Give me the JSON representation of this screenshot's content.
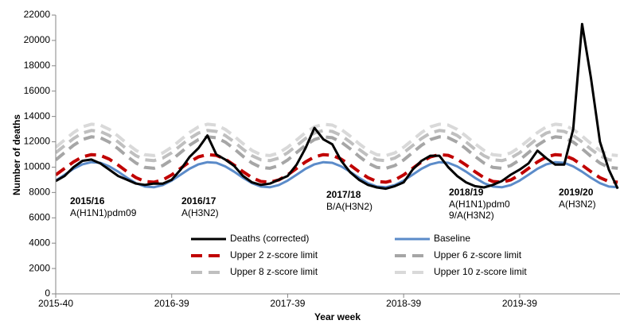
{
  "chart_data": {
    "type": "line",
    "y_label": "Number of deaths",
    "x_label": "Year week",
    "x": [
      0,
      4,
      8,
      12,
      16,
      20,
      24,
      28,
      32,
      36,
      40,
      44,
      48,
      52,
      56,
      60,
      64,
      68,
      72,
      76,
      80,
      84,
      88,
      92,
      96,
      100,
      104,
      108,
      112,
      116,
      120,
      124,
      128,
      132,
      136,
      140,
      144,
      148,
      152,
      156,
      160,
      164,
      168,
      172,
      176,
      180,
      184,
      188,
      192,
      196,
      200,
      204,
      208,
      212,
      216,
      220,
      224,
      228,
      232,
      236,
      240,
      244,
      248,
      252
    ],
    "xlim": [
      0,
      253
    ],
    "xticks": [
      {
        "value": 0,
        "label": "2015-40"
      },
      {
        "value": 52,
        "label": "2016-39"
      },
      {
        "value": 104,
        "label": "2017-39"
      },
      {
        "value": 156,
        "label": "2018-39"
      },
      {
        "value": 208,
        "label": "2019-39"
      }
    ],
    "ylim": [
      0,
      22000
    ],
    "yticks": [
      0,
      2000,
      4000,
      6000,
      8000,
      10000,
      12000,
      14000,
      16000,
      18000,
      20000,
      22000
    ],
    "series": [
      {
        "name": "Deaths (corrected)",
        "color": "#000000",
        "dashed": false,
        "values": [
          8900,
          9300,
          10000,
          10500,
          10600,
          10300,
          9800,
          9300,
          9000,
          8700,
          8600,
          8700,
          8700,
          9000,
          9800,
          10800,
          11500,
          12500,
          11000,
          10600,
          10100,
          9300,
          8800,
          8600,
          8700,
          9000,
          9300,
          10200,
          11500,
          13100,
          12200,
          11800,
          10500,
          9600,
          9000,
          8600,
          8400,
          8300,
          8500,
          8800,
          9800,
          10500,
          10900,
          10900,
          10000,
          9300,
          8800,
          8500,
          8400,
          8600,
          8900,
          9400,
          9800,
          10300,
          11300,
          10700,
          10200,
          10200,
          13000,
          21300,
          17000,
          12000,
          9800,
          8300
        ]
      },
      {
        "name": "Baseline",
        "color": "#5b8bc9",
        "dashed": false,
        "values": [
          8940,
          9400,
          9870,
          10220,
          10390,
          10340,
          10060,
          9640,
          9160,
          8740,
          8470,
          8410,
          8580,
          8940,
          9400,
          9870,
          10220,
          10390,
          10340,
          10060,
          9640,
          9160,
          8740,
          8470,
          8410,
          8580,
          8940,
          9400,
          9870,
          10220,
          10390,
          10340,
          10060,
          9640,
          9160,
          8740,
          8470,
          8410,
          8580,
          8940,
          9400,
          9870,
          10220,
          10390,
          10340,
          10060,
          9640,
          9160,
          8740,
          8470,
          8410,
          8580,
          8940,
          9400,
          9870,
          10220,
          10390,
          10340,
          10060,
          9640,
          9160,
          8740,
          8470,
          8410
        ]
      },
      {
        "name": "Upper 2 z-score limit",
        "color": "#c00000",
        "dashed": true,
        "values": [
          9390,
          9900,
          10410,
          10810,
          10990,
          10930,
          10630,
          10160,
          9640,
          9170,
          8870,
          8810,
          8990,
          9390,
          9900,
          10410,
          10810,
          10990,
          10930,
          10630,
          10160,
          9640,
          9170,
          8870,
          8810,
          8990,
          9390,
          9900,
          10410,
          10810,
          10990,
          10930,
          10630,
          10160,
          9640,
          9170,
          8870,
          8810,
          8990,
          9390,
          9900,
          10410,
          10810,
          10990,
          10930,
          10630,
          10160,
          9640,
          9170,
          8870,
          8810,
          8990,
          9390,
          9900,
          10410,
          10810,
          10990,
          10930,
          10630,
          10160,
          9640,
          9170,
          8870,
          8810
        ]
      },
      {
        "name": "Upper 6 z-score limit",
        "color": "#a6a6a6",
        "dashed": true,
        "values": [
          10570,
          11150,
          11730,
          12180,
          12390,
          12320,
          11980,
          11450,
          10850,
          10320,
          9980,
          9910,
          10120,
          10570,
          11150,
          11730,
          12180,
          12390,
          12320,
          11980,
          11450,
          10850,
          10320,
          9980,
          9910,
          10120,
          10570,
          11150,
          11730,
          12180,
          12390,
          12320,
          11980,
          11450,
          10850,
          10320,
          9980,
          9910,
          10120,
          10570,
          11150,
          11730,
          12180,
          12390,
          12320,
          11980,
          11450,
          10850,
          10320,
          9980,
          9910,
          10120,
          10570,
          11150,
          11730,
          12180,
          12390,
          12320,
          11980,
          11450,
          10850,
          10320,
          9980,
          9910
        ]
      },
      {
        "name": "Upper 8 z-score limit",
        "color": "#bfbfbf",
        "dashed": true,
        "values": [
          11140,
          11700,
          12260,
          12690,
          12890,
          12820,
          12500,
          11990,
          11410,
          10900,
          10580,
          10510,
          10710,
          11140,
          11700,
          12260,
          12690,
          12890,
          12820,
          12500,
          11990,
          11410,
          10900,
          10580,
          10510,
          10710,
          11140,
          11700,
          12260,
          12690,
          12890,
          12820,
          12500,
          11990,
          11410,
          10900,
          10580,
          10510,
          10710,
          11140,
          11700,
          12260,
          12690,
          12890,
          12820,
          12500,
          11990,
          11410,
          10900,
          10580,
          10510,
          10710,
          11140,
          11700,
          12260,
          12690,
          12890,
          12820,
          12500,
          11990,
          11410,
          10900,
          10580,
          10510
        ]
      },
      {
        "name": "Upper 10 z-score limit",
        "color": "#d9d9d9",
        "dashed": true,
        "values": [
          11570,
          12150,
          12730,
          13180,
          13390,
          13320,
          12980,
          12450,
          11850,
          11320,
          10980,
          10910,
          11120,
          11570,
          12150,
          12730,
          13180,
          13390,
          13320,
          12980,
          12450,
          11850,
          11320,
          10980,
          10910,
          11120,
          11570,
          12150,
          12730,
          13180,
          13390,
          13320,
          12980,
          12450,
          11850,
          11320,
          10980,
          10910,
          11120,
          11570,
          12150,
          12730,
          13180,
          13390,
          13320,
          12980,
          12450,
          11850,
          11320,
          10980,
          10910,
          11120,
          11570,
          12150,
          12730,
          13180,
          13390,
          13320,
          12980,
          12450,
          11850,
          11320,
          10980,
          10910
        ]
      }
    ],
    "annotations": [
      {
        "season": "2015/16",
        "strain": [
          "A(H1N1)pdm09"
        ]
      },
      {
        "season": "2016/17",
        "strain": [
          "A(H3N2)"
        ]
      },
      {
        "season": "2017/18",
        "strain": [
          "B/A(H3N2)"
        ]
      },
      {
        "season": "2018/19",
        "strain": [
          "A(H1N1)pdm0",
          "9/A(H3N2)"
        ]
      },
      {
        "season": "2019/20",
        "strain": [
          "A(H3N2)"
        ]
      }
    ],
    "legend": "bottom-inside"
  }
}
